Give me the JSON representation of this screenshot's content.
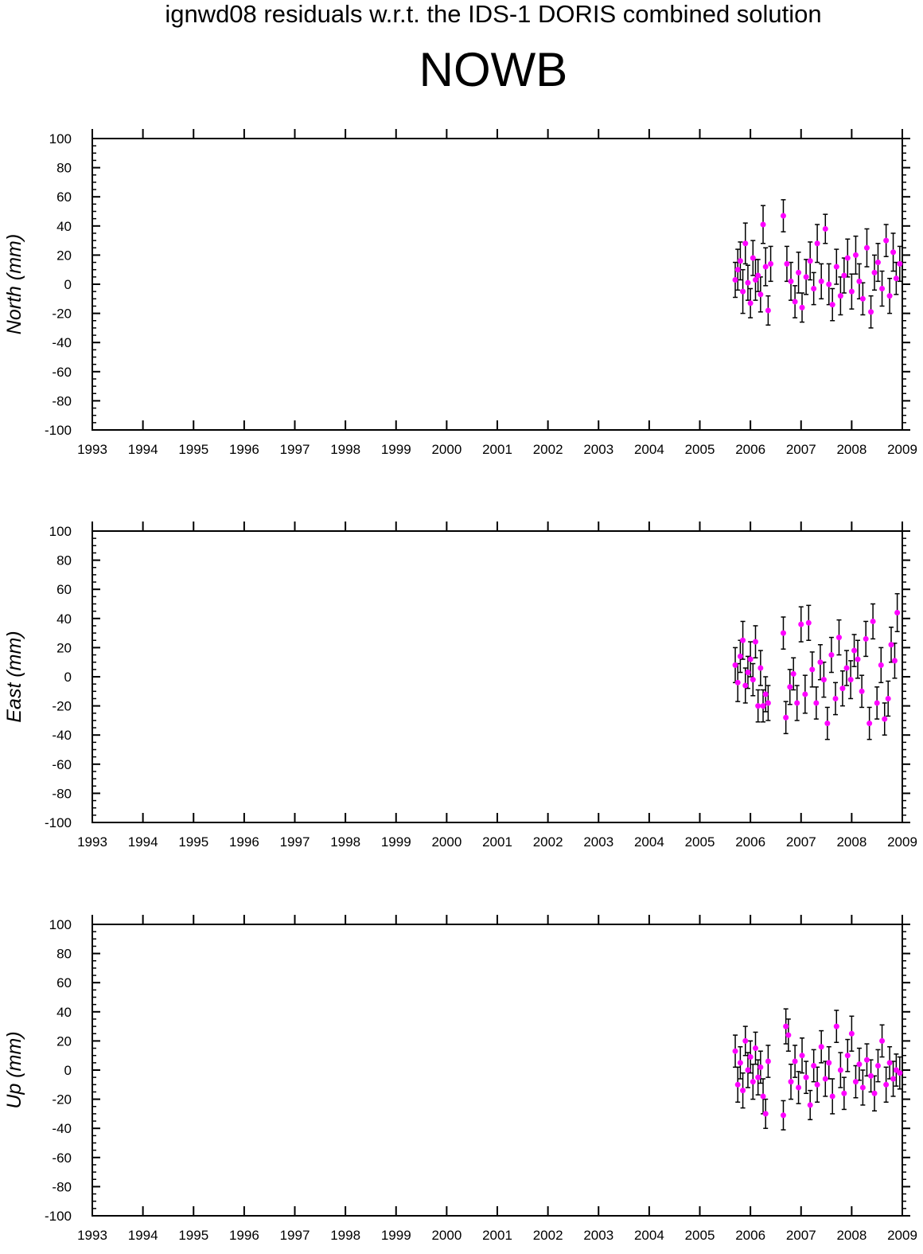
{
  "header": {
    "title": "ignwd08 residuals w.r.t. the IDS-1 DORIS combined solution",
    "station": "NOWB"
  },
  "colors": {
    "point": "#ff00ff",
    "errorbar": "#000000",
    "axes": "#000000"
  },
  "chart_data": [
    {
      "type": "scatter",
      "name": "north",
      "ylabel": "North (mm)",
      "xlim": [
        1993,
        2009
      ],
      "ylim": [
        -100,
        100
      ],
      "xticks": [
        "1993",
        "1994",
        "1995",
        "1996",
        "1997",
        "1998",
        "1999",
        "2000",
        "2001",
        "2002",
        "2003",
        "2004",
        "2005",
        "2006",
        "2007",
        "2008",
        "2009"
      ],
      "yticks": [
        "100",
        "80",
        "60",
        "40",
        "20",
        "0",
        "-20",
        "-40",
        "-60",
        "-80",
        "-100"
      ],
      "error_bars": true,
      "series": [
        {
          "points": [
            [
              2005.7,
              3,
              12
            ],
            [
              2005.75,
              10,
              14
            ],
            [
              2005.8,
              16,
              13
            ],
            [
              2005.85,
              -5,
              15
            ],
            [
              2005.9,
              28,
              14
            ],
            [
              2005.95,
              1,
              12
            ],
            [
              2006.0,
              -13,
              10
            ],
            [
              2006.05,
              18,
              12
            ],
            [
              2006.1,
              3,
              14
            ],
            [
              2006.15,
              6,
              11
            ],
            [
              2006.2,
              -7,
              12
            ],
            [
              2006.25,
              41,
              13
            ],
            [
              2006.3,
              12,
              13
            ],
            [
              2006.35,
              -18,
              10
            ],
            [
              2006.4,
              14,
              12
            ],
            [
              2006.65,
              47,
              11
            ],
            [
              2006.72,
              14,
              12
            ],
            [
              2006.8,
              2,
              13
            ],
            [
              2006.88,
              -12,
              11
            ],
            [
              2006.95,
              8,
              14
            ],
            [
              2007.02,
              -16,
              10
            ],
            [
              2007.1,
              5,
              12
            ],
            [
              2007.18,
              16,
              13
            ],
            [
              2007.25,
              -3,
              11
            ],
            [
              2007.32,
              28,
              13
            ],
            [
              2007.4,
              2,
              12
            ],
            [
              2007.48,
              38,
              10
            ],
            [
              2007.55,
              0,
              14
            ],
            [
              2007.62,
              -14,
              11
            ],
            [
              2007.7,
              12,
              12
            ],
            [
              2007.78,
              -8,
              13
            ],
            [
              2007.85,
              6,
              12
            ],
            [
              2007.92,
              18,
              13
            ],
            [
              2008.0,
              -5,
              12
            ],
            [
              2008.08,
              20,
              13
            ],
            [
              2008.15,
              2,
              12
            ],
            [
              2008.22,
              -10,
              11
            ],
            [
              2008.3,
              25,
              13
            ],
            [
              2008.38,
              -19,
              11
            ],
            [
              2008.45,
              8,
              12
            ],
            [
              2008.52,
              15,
              13
            ],
            [
              2008.6,
              -3,
              12
            ],
            [
              2008.68,
              30,
              11
            ],
            [
              2008.75,
              -8,
              12
            ],
            [
              2008.82,
              22,
              13
            ],
            [
              2008.88,
              4,
              11
            ],
            [
              2008.95,
              14,
              12
            ]
          ]
        }
      ]
    },
    {
      "type": "scatter",
      "name": "east",
      "ylabel": "East (mm)",
      "xlim": [
        1993,
        2009
      ],
      "ylim": [
        -100,
        100
      ],
      "xticks": [
        "1993",
        "1994",
        "1995",
        "1996",
        "1997",
        "1998",
        "1999",
        "2000",
        "2001",
        "2002",
        "2003",
        "2004",
        "2005",
        "2006",
        "2007",
        "2008",
        "2009"
      ],
      "yticks": [
        "100",
        "80",
        "60",
        "40",
        "20",
        "0",
        "-20",
        "-40",
        "-60",
        "-80",
        "-100"
      ],
      "error_bars": true,
      "series": [
        {
          "points": [
            [
              2005.7,
              8,
              12
            ],
            [
              2005.75,
              -4,
              13
            ],
            [
              2005.8,
              14,
              11
            ],
            [
              2005.85,
              25,
              13
            ],
            [
              2005.9,
              -6,
              12
            ],
            [
              2005.95,
              3,
              11
            ],
            [
              2006.0,
              12,
              12
            ],
            [
              2006.05,
              -2,
              11
            ],
            [
              2006.1,
              24,
              11
            ],
            [
              2006.15,
              -20,
              11
            ],
            [
              2006.2,
              6,
              12
            ],
            [
              2006.25,
              -20,
              11
            ],
            [
              2006.3,
              -12,
              12
            ],
            [
              2006.35,
              -18,
              12
            ],
            [
              2006.65,
              30,
              11
            ],
            [
              2006.7,
              -28,
              11
            ],
            [
              2006.78,
              -7,
              12
            ],
            [
              2006.85,
              2,
              11
            ],
            [
              2006.92,
              -18,
              12
            ],
            [
              2007.0,
              36,
              12
            ],
            [
              2007.08,
              -12,
              13
            ],
            [
              2007.15,
              37,
              12
            ],
            [
              2007.22,
              5,
              12
            ],
            [
              2007.3,
              -18,
              11
            ],
            [
              2007.38,
              10,
              12
            ],
            [
              2007.45,
              -2,
              12
            ],
            [
              2007.52,
              -32,
              11
            ],
            [
              2007.6,
              15,
              12
            ],
            [
              2007.68,
              -15,
              11
            ],
            [
              2007.75,
              27,
              12
            ],
            [
              2007.82,
              -8,
              12
            ],
            [
              2007.9,
              6,
              12
            ],
            [
              2007.98,
              -2,
              13
            ],
            [
              2008.05,
              18,
              11
            ],
            [
              2008.12,
              12,
              13
            ],
            [
              2008.2,
              -10,
              11
            ],
            [
              2008.28,
              26,
              12
            ],
            [
              2008.35,
              -32,
              11
            ],
            [
              2008.42,
              38,
              12
            ],
            [
              2008.5,
              -18,
              11
            ],
            [
              2008.58,
              8,
              12
            ],
            [
              2008.65,
              -29,
              11
            ],
            [
              2008.72,
              -15,
              12
            ],
            [
              2008.78,
              22,
              12
            ],
            [
              2008.85,
              11,
              12
            ],
            [
              2008.9,
              44,
              13
            ]
          ]
        }
      ]
    },
    {
      "type": "scatter",
      "name": "up",
      "ylabel": "Up (mm)",
      "xlim": [
        1993,
        2009
      ],
      "ylim": [
        -100,
        100
      ],
      "xticks": [
        "1993",
        "1994",
        "1995",
        "1996",
        "1997",
        "1998",
        "1999",
        "2000",
        "2001",
        "2002",
        "2003",
        "2004",
        "2005",
        "2006",
        "2007",
        "2008",
        "2009"
      ],
      "yticks": [
        "100",
        "80",
        "60",
        "40",
        "20",
        "0",
        "-20",
        "-40",
        "-60",
        "-80",
        "-100"
      ],
      "error_bars": true,
      "series": [
        {
          "points": [
            [
              2005.7,
              13,
              11
            ],
            [
              2005.75,
              -10,
              12
            ],
            [
              2005.8,
              5,
              11
            ],
            [
              2005.85,
              -14,
              12
            ],
            [
              2005.9,
              20,
              10
            ],
            [
              2005.95,
              0,
              12
            ],
            [
              2006.0,
              9,
              11
            ],
            [
              2006.05,
              -8,
              12
            ],
            [
              2006.1,
              15,
              11
            ],
            [
              2006.15,
              -5,
              12
            ],
            [
              2006.2,
              2,
              11
            ],
            [
              2006.25,
              -18,
              12
            ],
            [
              2006.3,
              -30,
              10
            ],
            [
              2006.35,
              6,
              11
            ],
            [
              2006.65,
              -31,
              10
            ],
            [
              2006.7,
              30,
              12
            ],
            [
              2006.75,
              24,
              11
            ],
            [
              2006.8,
              -8,
              12
            ],
            [
              2006.88,
              6,
              11
            ],
            [
              2006.95,
              -12,
              11
            ],
            [
              2007.02,
              10,
              12
            ],
            [
              2007.1,
              -5,
              11
            ],
            [
              2007.18,
              -24,
              10
            ],
            [
              2007.25,
              3,
              11
            ],
            [
              2007.32,
              -10,
              12
            ],
            [
              2007.4,
              16,
              11
            ],
            [
              2007.48,
              -6,
              12
            ],
            [
              2007.55,
              5,
              11
            ],
            [
              2007.62,
              -18,
              12
            ],
            [
              2007.7,
              30,
              11
            ],
            [
              2007.78,
              0,
              12
            ],
            [
              2007.85,
              -16,
              11
            ],
            [
              2007.92,
              10,
              11
            ],
            [
              2008.0,
              25,
              12
            ],
            [
              2008.08,
              -8,
              11
            ],
            [
              2008.15,
              4,
              11
            ],
            [
              2008.22,
              -12,
              12
            ],
            [
              2008.3,
              7,
              11
            ],
            [
              2008.38,
              -4,
              11
            ],
            [
              2008.45,
              -16,
              12
            ],
            [
              2008.52,
              3,
              11
            ],
            [
              2008.6,
              20,
              11
            ],
            [
              2008.68,
              -10,
              12
            ],
            [
              2008.75,
              5,
              11
            ],
            [
              2008.82,
              -6,
              12
            ],
            [
              2008.88,
              0,
              11
            ],
            [
              2008.95,
              -2,
              11
            ]
          ]
        }
      ]
    }
  ]
}
